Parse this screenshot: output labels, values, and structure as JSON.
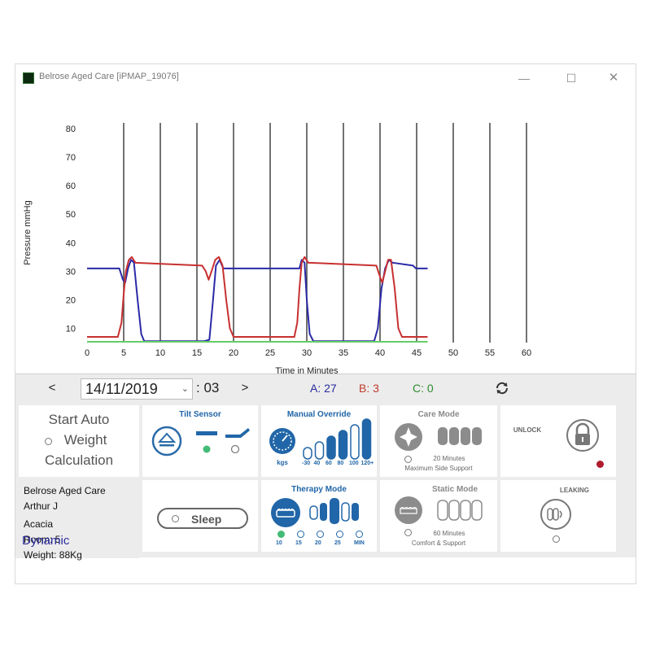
{
  "window": {
    "title": "Belrose Aged Care [iPMAP_19076]",
    "controls": {
      "minimize": "—",
      "maximize": "☐",
      "close": "✕"
    }
  },
  "chart_data": {
    "type": "line",
    "xlabel": "Time in Minutes",
    "ylabel": "Pressure mmHg",
    "xlim": [
      0,
      60
    ],
    "ylim": [
      5,
      82
    ],
    "x_ticks": [
      0,
      5,
      10,
      15,
      20,
      25,
      30,
      35,
      40,
      45,
      50,
      55,
      60
    ],
    "y_ticks": [
      10,
      20,
      30,
      40,
      50,
      60,
      70,
      80
    ],
    "vertical_gridlines_at": [
      5,
      10,
      15,
      20,
      25,
      30,
      35,
      40,
      45,
      50,
      55,
      60
    ],
    "series": [
      {
        "color": "#2a2aa8",
        "points": [
          [
            0,
            31
          ],
          [
            4.4,
            31
          ],
          [
            4.9,
            27
          ],
          [
            5.2,
            26
          ],
          [
            5.6,
            31
          ],
          [
            6.0,
            34
          ],
          [
            6.4,
            33
          ],
          [
            6.9,
            20
          ],
          [
            7.4,
            8
          ],
          [
            7.8,
            5.5
          ],
          [
            16,
            5.5
          ],
          [
            16.7,
            6
          ],
          [
            17.2,
            20
          ],
          [
            17.6,
            32
          ],
          [
            18.1,
            34
          ],
          [
            18.6,
            31
          ],
          [
            29,
            31
          ],
          [
            29.3,
            34
          ],
          [
            29.7,
            33
          ],
          [
            30.0,
            20
          ],
          [
            30.4,
            8
          ],
          [
            30.9,
            5.5
          ],
          [
            39.2,
            5.5
          ],
          [
            39.7,
            10
          ],
          [
            40.2,
            24
          ],
          [
            40.7,
            31
          ],
          [
            41.2,
            34
          ],
          [
            41.7,
            33
          ],
          [
            44.5,
            32
          ],
          [
            44.9,
            31
          ],
          [
            46.5,
            31
          ]
        ]
      },
      {
        "color": "#c83030",
        "points": [
          [
            0,
            7
          ],
          [
            4.2,
            7
          ],
          [
            4.7,
            12
          ],
          [
            5.0,
            22
          ],
          [
            5.3,
            30
          ],
          [
            5.7,
            34
          ],
          [
            6.1,
            35
          ],
          [
            6.6,
            33
          ],
          [
            15.7,
            32
          ],
          [
            16.2,
            30
          ],
          [
            16.6,
            27
          ],
          [
            17.0,
            30
          ],
          [
            17.5,
            34
          ],
          [
            18,
            35
          ],
          [
            18.5,
            32
          ],
          [
            19.0,
            20
          ],
          [
            19.5,
            10
          ],
          [
            20.0,
            7
          ],
          [
            28.3,
            7
          ],
          [
            28.7,
            12
          ],
          [
            29.0,
            24
          ],
          [
            29.3,
            33
          ],
          [
            29.7,
            35
          ],
          [
            30.2,
            33
          ],
          [
            39.5,
            32
          ],
          [
            40.0,
            28
          ],
          [
            40.3,
            26
          ],
          [
            40.7,
            30
          ],
          [
            41.1,
            34
          ],
          [
            41.5,
            34
          ],
          [
            42.0,
            24
          ],
          [
            42.5,
            10
          ],
          [
            43.0,
            7
          ],
          [
            46.5,
            7
          ]
        ]
      },
      {
        "color": "#66cc66",
        "points": [
          [
            0,
            5.3
          ],
          [
            46.5,
            5.3
          ]
        ]
      }
    ]
  },
  "nav": {
    "prev": "<",
    "next": ">",
    "date": "14/11/2019",
    "minute": ": 03",
    "count_a": "A: 27",
    "count_b": "B: 3",
    "count_c": "C: 0",
    "refresh_icon": "refresh-icon"
  },
  "start_auto": {
    "line1": "Start Auto",
    "line2": "Weight",
    "line3": "Calculation"
  },
  "tilt": {
    "title": "Tilt Sensor"
  },
  "manual_override": {
    "title": "Manual Override",
    "gauge_unit": "kgs",
    "levels": [
      "-30",
      "40",
      "60",
      "80",
      "100",
      "120+"
    ],
    "selected_index": 3
  },
  "care_mode": {
    "title": "Care Mode",
    "time": "20 Minutes",
    "desc": "Maximum Side Support"
  },
  "unlock": {
    "title": "UNLOCK"
  },
  "patient": {
    "facility": "Belrose Aged Care",
    "name": "Arthur J",
    "ward": "Acacia",
    "room": "Room: 5",
    "weight": "Weight: 88Kg",
    "mode": "Dynamic"
  },
  "sleep": {
    "label": "Sleep"
  },
  "therapy_mode": {
    "title": "Therapy Mode",
    "options": [
      "10",
      "15",
      "20",
      "25",
      "MIN"
    ],
    "selected_index": 0
  },
  "static_mode": {
    "title": "Static Mode",
    "time": "60 Minutes",
    "desc": "Comfort & Support"
  },
  "leaking": {
    "title": "LEAKING"
  }
}
